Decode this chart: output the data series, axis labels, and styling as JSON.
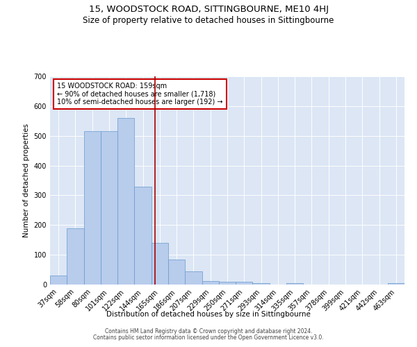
{
  "title": "15, WOODSTOCK ROAD, SITTINGBOURNE, ME10 4HJ",
  "subtitle": "Size of property relative to detached houses in Sittingbourne",
  "xlabel": "Distribution of detached houses by size in Sittingbourne",
  "ylabel": "Number of detached properties",
  "categories": [
    "37sqm",
    "58sqm",
    "80sqm",
    "101sqm",
    "122sqm",
    "144sqm",
    "165sqm",
    "186sqm",
    "207sqm",
    "229sqm",
    "250sqm",
    "271sqm",
    "293sqm",
    "314sqm",
    "335sqm",
    "357sqm",
    "378sqm",
    "399sqm",
    "421sqm",
    "442sqm",
    "463sqm"
  ],
  "values": [
    30,
    190,
    515,
    515,
    560,
    328,
    140,
    85,
    44,
    12,
    10,
    10,
    5,
    0,
    5,
    0,
    0,
    0,
    0,
    0,
    5
  ],
  "bar_color": "#b8ccec",
  "bar_edge_color": "#6699cc",
  "vline_color": "#aa0000",
  "annotation_text": "15 WOODSTOCK ROAD: 159sqm\n← 90% of detached houses are smaller (1,718)\n10% of semi-detached houses are larger (192) →",
  "annotation_box_color": "#ffffff",
  "annotation_box_edge": "#cc0000",
  "ylim": [
    0,
    700
  ],
  "yticks": [
    0,
    100,
    200,
    300,
    400,
    500,
    600,
    700
  ],
  "background_color": "#dce6f5",
  "footer_line1": "Contains HM Land Registry data © Crown copyright and database right 2024.",
  "footer_line2": "Contains public sector information licensed under the Open Government Licence v3.0.",
  "title_fontsize": 9.5,
  "subtitle_fontsize": 8.5
}
